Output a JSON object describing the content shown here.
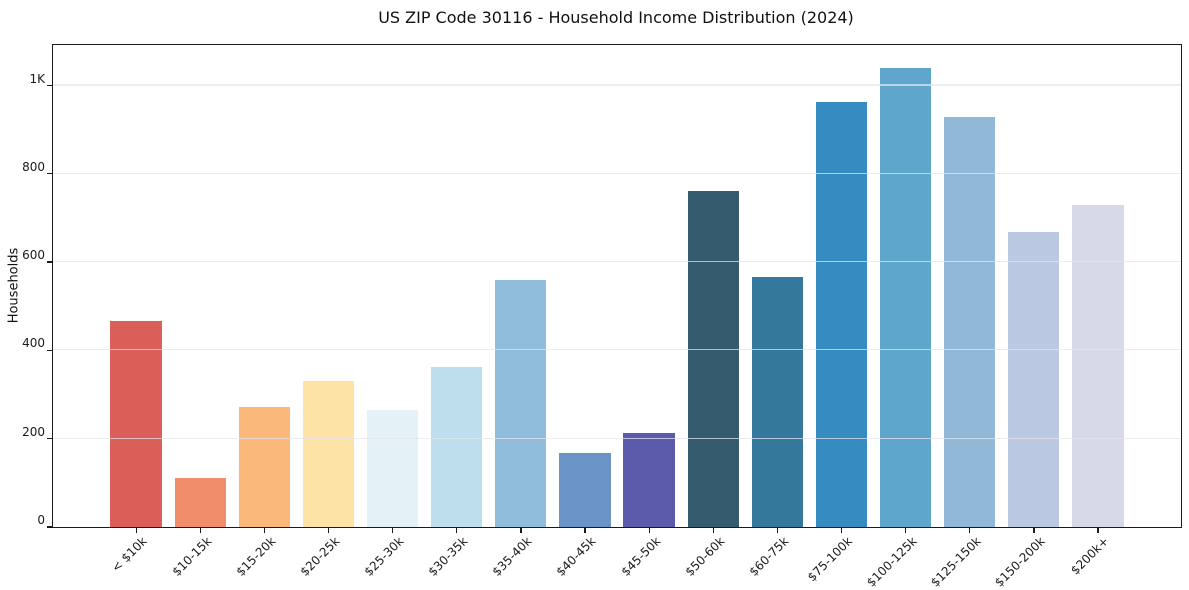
{
  "chart_data": {
    "type": "bar",
    "title": "US ZIP Code 30116 - Household Income Distribution (2024)",
    "xlabel": "",
    "ylabel": "Households",
    "categories": [
      "< $10k",
      "$10-15k",
      "$15-20k",
      "$20-25k",
      "$25-30k",
      "$30-35k",
      "$35-40k",
      "$40-45k",
      "$45-50k",
      "$50-60k",
      "$60-75k",
      "$75-100k",
      "$100-125k",
      "$125-150k",
      "$150-200k",
      "$200k+"
    ],
    "values": [
      467,
      110,
      273,
      330,
      264,
      362,
      560,
      168,
      213,
      761,
      566,
      962,
      1040,
      929,
      668,
      730
    ],
    "bar_colors": [
      "#d95f58",
      "#f28d6b",
      "#fab97a",
      "#fde4a6",
      "#e4f1f7",
      "#bcdeed",
      "#90bddc",
      "#6b94c6",
      "#5c5bab",
      "#355b6f",
      "#34789b",
      "#368bc1",
      "#5ea6cb",
      "#92b8d7",
      "#bac8e1",
      "#d7d9e8"
    ],
    "ylim": [
      0,
      1092
    ],
    "yticks": [
      {
        "value": 0,
        "label": "0"
      },
      {
        "value": 200,
        "label": "200"
      },
      {
        "value": 400,
        "label": "400"
      },
      {
        "value": 600,
        "label": "600"
      },
      {
        "value": 800,
        "label": "800"
      },
      {
        "value": 1000,
        "label": "1K"
      }
    ],
    "grid": "horizontal",
    "legend": "none"
  },
  "colors": {
    "background": "#ffffff",
    "axis": "#1a1a1a",
    "grid": "#e4e4ee",
    "text": "#1a1a1a"
  }
}
